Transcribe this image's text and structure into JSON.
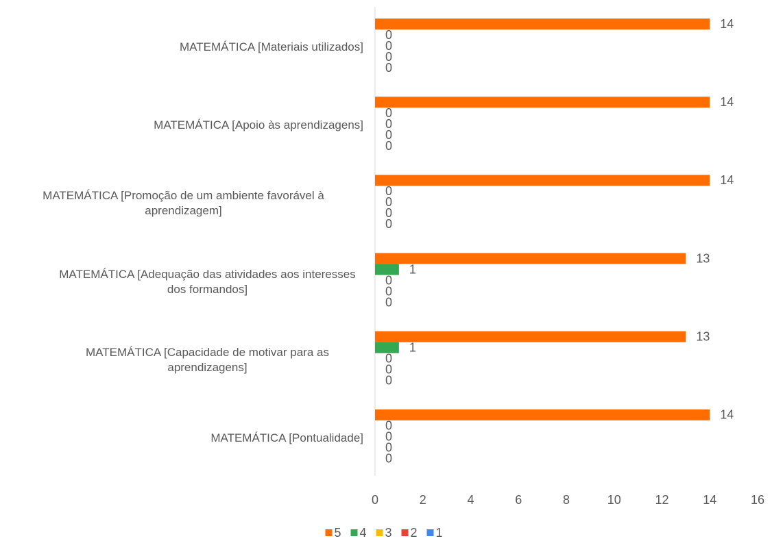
{
  "chart_data": {
    "type": "bar",
    "orientation": "horizontal",
    "categories": [
      "MATEMÁTICA [Materiais utilizados]",
      "MATEMÁTICA [Apoio às aprendizagens]",
      "MATEMÁTICA [Promoção de um ambiente favorável à aprendizagem]",
      "MATEMÁTICA [Adequação das atividades aos interesses dos formandos]",
      "MATEMÁTICA [Capacidade de motivar para as aprendizagens]",
      "MATEMÁTICA [Pontualidade]"
    ],
    "series": [
      {
        "name": "5",
        "color": "#ff6d01",
        "values": [
          14,
          14,
          14,
          13,
          13,
          14
        ]
      },
      {
        "name": "4",
        "color": "#34a853",
        "values": [
          0,
          0,
          0,
          1,
          1,
          0
        ]
      },
      {
        "name": "3",
        "color": "#fbbc04",
        "values": [
          0,
          0,
          0,
          0,
          0,
          0
        ]
      },
      {
        "name": "2",
        "color": "#ea4335",
        "values": [
          0,
          0,
          0,
          0,
          0,
          0
        ]
      },
      {
        "name": "1",
        "color": "#4285f4",
        "values": [
          0,
          0,
          0,
          0,
          0,
          0
        ]
      }
    ],
    "xlim": [
      0,
      16
    ],
    "xticks": [
      0,
      2,
      4,
      6,
      8,
      10,
      12,
      14,
      16
    ],
    "grid": false,
    "legend": "bottom"
  }
}
